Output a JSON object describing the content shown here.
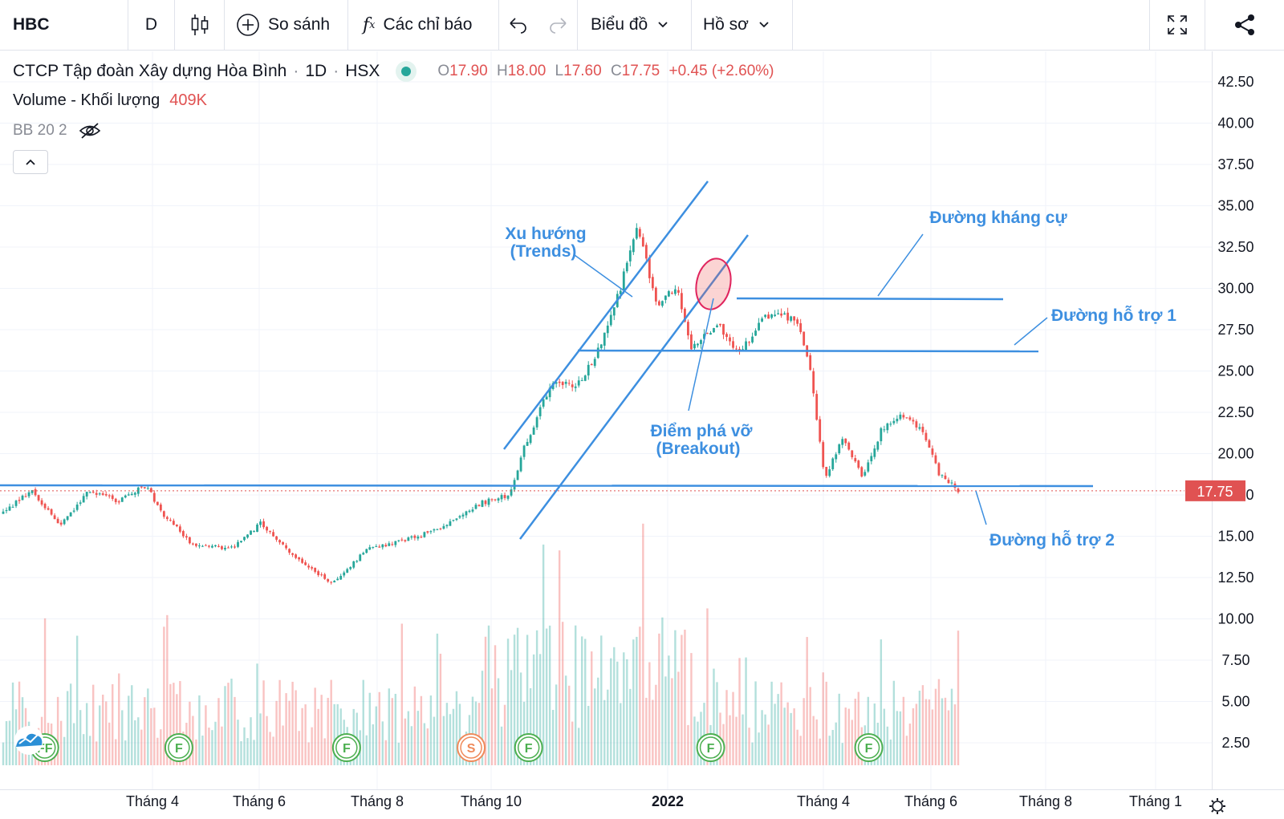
{
  "toolbar": {
    "symbol": "HBC",
    "interval": "D",
    "compare_label": "So sánh",
    "indicators_label": "Các chỉ báo",
    "chart_label": "Biểu đồ",
    "profile_label": "Hồ sơ"
  },
  "legend": {
    "company": "CTCP Tập đoàn Xây dựng Hòa Bình",
    "interval": "1D",
    "exchange": "HSX",
    "o_label": "O",
    "o_value": "17.90",
    "h_label": "H",
    "h_value": "18.00",
    "l_label": "L",
    "l_value": "17.60",
    "c_label": "C",
    "c_value": "17.75",
    "change": "+0.45 (+2.60%)",
    "volume_label": "Volume - Khối lượng",
    "volume_value": "409K",
    "bb_label": "BB 20 2"
  },
  "colors": {
    "up": "#26a69a",
    "down": "#ef5350",
    "annotation": "#3d8fe0",
    "price_tag": "#e05252"
  },
  "chart_data": {
    "type": "candlestick",
    "title": "CTCP Tập đoàn Xây dựng Hòa Bình",
    "ylim": [
      0,
      45
    ],
    "y_ticks": [
      "42.50",
      "40.00",
      "37.50",
      "35.00",
      "32.50",
      "30.00",
      "27.50",
      "25.00",
      "22.50",
      "20.00",
      "17.50",
      "15.00",
      "12.50",
      "10.00",
      "7.50",
      "5.00",
      "2.50"
    ],
    "x_ticks": [
      "Tháng 4",
      "Tháng 6",
      "Tháng 8",
      "Tháng 10",
      "2022",
      "Tháng 4",
      "Tháng 6",
      "Tháng 8",
      "Tháng 1"
    ],
    "last_price": "17.75",
    "price_path": [
      {
        "t": 0,
        "p": 16.4
      },
      {
        "t": 0.03,
        "p": 17.8
      },
      {
        "t": 0.06,
        "p": 15.6
      },
      {
        "t": 0.09,
        "p": 17.8
      },
      {
        "t": 0.12,
        "p": 17.1
      },
      {
        "t": 0.15,
        "p": 18.1
      },
      {
        "t": 0.165,
        "p": 16.5
      },
      {
        "t": 0.2,
        "p": 14.4
      },
      {
        "t": 0.24,
        "p": 14.3
      },
      {
        "t": 0.27,
        "p": 15.8
      },
      {
        "t": 0.3,
        "p": 14.0
      },
      {
        "t": 0.345,
        "p": 12.1
      },
      {
        "t": 0.38,
        "p": 14.2
      },
      {
        "t": 0.41,
        "p": 14.6
      },
      {
        "t": 0.45,
        "p": 15.3
      },
      {
        "t": 0.5,
        "p": 17.0
      },
      {
        "t": 0.53,
        "p": 17.5
      },
      {
        "t": 0.545,
        "p": 20.3
      },
      {
        "t": 0.575,
        "p": 24.4
      },
      {
        "t": 0.6,
        "p": 24.0
      },
      {
        "t": 0.625,
        "p": 26.4
      },
      {
        "t": 0.645,
        "p": 29.8
      },
      {
        "t": 0.665,
        "p": 33.8
      },
      {
        "t": 0.685,
        "p": 28.6
      },
      {
        "t": 0.705,
        "p": 30.3
      },
      {
        "t": 0.72,
        "p": 26.4
      },
      {
        "t": 0.75,
        "p": 27.8
      },
      {
        "t": 0.77,
        "p": 26.0
      },
      {
        "t": 0.8,
        "p": 28.4
      },
      {
        "t": 0.83,
        "p": 28.2
      },
      {
        "t": 0.845,
        "p": 25.0
      },
      {
        "t": 0.86,
        "p": 18.5
      },
      {
        "t": 0.88,
        "p": 21.0
      },
      {
        "t": 0.9,
        "p": 18.5
      },
      {
        "t": 0.92,
        "p": 21.5
      },
      {
        "t": 0.94,
        "p": 22.4
      },
      {
        "t": 0.96,
        "p": 21.6
      },
      {
        "t": 0.98,
        "p": 18.8
      },
      {
        "t": 1.0,
        "p": 17.75
      }
    ],
    "volume_scale_max": 12,
    "event_markers": [
      {
        "label": "FF",
        "t": 0.045,
        "color": "#4caf50"
      },
      {
        "label": "F",
        "t": 0.185,
        "color": "#4caf50"
      },
      {
        "label": "F",
        "t": 0.36,
        "color": "#4caf50"
      },
      {
        "label": "S",
        "t": 0.49,
        "color": "#ef8a5a"
      },
      {
        "label": "F",
        "t": 0.55,
        "color": "#4caf50"
      },
      {
        "label": "F",
        "t": 0.74,
        "color": "#4caf50"
      },
      {
        "label": "F",
        "t": 0.905,
        "color": "#4caf50"
      }
    ],
    "annotations": {
      "trend": "Xu hướng",
      "trend_en": "(Trends)",
      "breakout": "Điểm phá vỡ",
      "breakout_en": "(Breakout)",
      "resistance": "Đường kháng cự",
      "support1": "Đường hỗ trợ 1",
      "support2": "Đường hỗ trợ 2"
    }
  }
}
